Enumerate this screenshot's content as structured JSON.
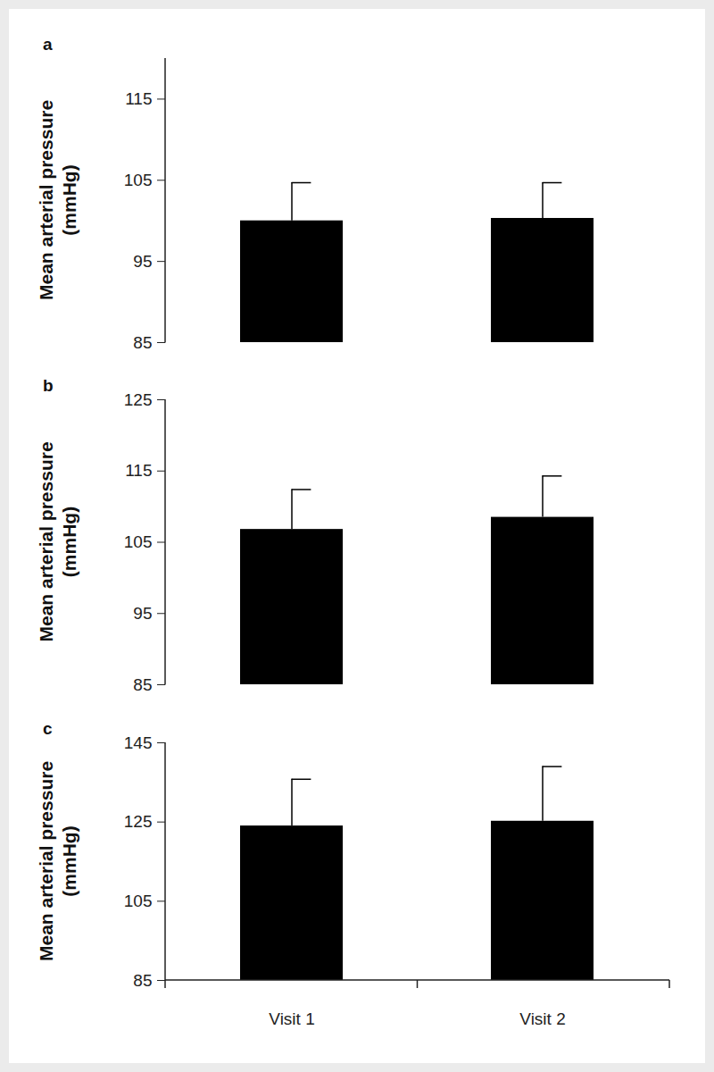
{
  "chart_data": [
    {
      "type": "bar",
      "title": "a",
      "ylabel": [
        "Mean arterial pressure",
        "(mmHg)"
      ],
      "categories": [
        "Visit 1",
        "Visit 2"
      ],
      "values": [
        100.0,
        100.3
      ],
      "error": [
        4.7,
        4.4
      ],
      "color": "#000000",
      "ylim": [
        85,
        120
      ],
      "yticks": [
        85,
        95,
        105,
        115
      ],
      "grid": false,
      "tick_labels": "y"
    },
    {
      "type": "bar",
      "title": "b",
      "ylabel": [
        "Mean arterial pressure",
        "(mmHg)"
      ],
      "categories": [
        "Visit 1",
        "Visit 2"
      ],
      "values": [
        106.8,
        108.5
      ],
      "error": [
        5.6,
        5.8
      ],
      "color": "#000000",
      "ylim": [
        85,
        125
      ],
      "yticks": [
        85,
        95,
        105,
        115,
        125
      ],
      "grid": false,
      "tick_labels": "y"
    },
    {
      "type": "bar",
      "title": "c",
      "ylabel": [
        "Mean arterial pressure",
        "(mmHg)"
      ],
      "categories": [
        "Visit 1",
        "Visit 2"
      ],
      "values": [
        124.0,
        125.2
      ],
      "error": [
        11.8,
        13.8
      ],
      "color": "#000000",
      "ylim": [
        85,
        145
      ],
      "yticks": [
        85,
        105,
        125,
        145
      ],
      "grid": false
    }
  ]
}
